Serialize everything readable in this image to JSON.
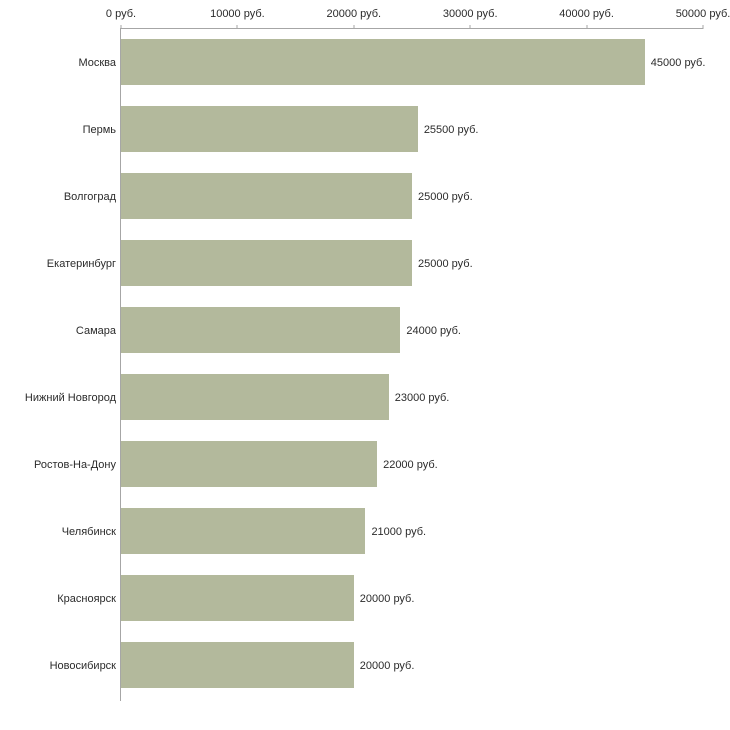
{
  "chart_data": {
    "type": "bar",
    "orientation": "horizontal",
    "title": "",
    "xlabel": "",
    "ylabel": "",
    "xlim": [
      0,
      50000
    ],
    "grid": false,
    "legend": false,
    "axis_ticks": [
      "0 руб.",
      "10000 руб.",
      "20000 руб.",
      "30000 руб.",
      "40000 руб.",
      "50000 руб."
    ],
    "categories": [
      "Москва",
      "Пермь",
      "Волгоград",
      "Екатеринбург",
      "Самара",
      "Нижний Новгород",
      "Ростов-На-Дону",
      "Челябинск",
      "Красноярск",
      "Новосибирск"
    ],
    "values": [
      45000,
      25500,
      25000,
      25000,
      24000,
      23000,
      22000,
      21000,
      20000,
      20000
    ],
    "value_labels": [
      "45000 руб.",
      "25500 руб.",
      "25000 руб.",
      "25000 руб.",
      "24000 руб.",
      "23000 руб.",
      "22000 руб.",
      "21000 руб.",
      "20000 руб.",
      "20000 руб."
    ],
    "bar_color": "#b3b99c",
    "axis_color": "#a6a6a6",
    "text_color": "#2b2b2b",
    "background_color": "#ffffff"
  }
}
